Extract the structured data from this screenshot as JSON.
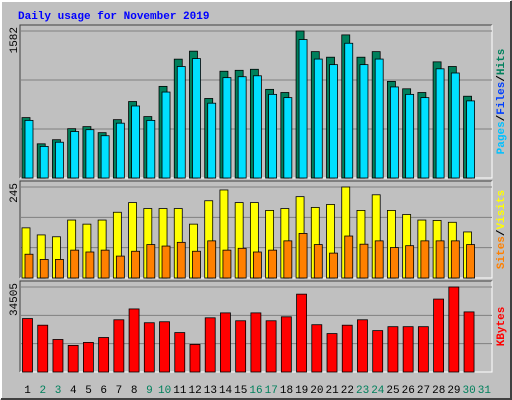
{
  "title": "Daily usage for November 2019",
  "chart_data": [
    {
      "type": "bar",
      "ylim": [
        0,
        1582
      ],
      "yticks": [
        1582
      ],
      "side_label": [
        {
          "text": "Pages",
          "color": "#00c0ff"
        },
        {
          "text": "Files",
          "color": "#0040ff"
        },
        {
          "text": "Hits",
          "color": "#00805c"
        }
      ],
      "separator": "/",
      "series": [
        {
          "name": "Hits",
          "color": "#00805c",
          "values": [
            650,
            368,
            412,
            531,
            553,
            488,
            628,
            823,
            661,
            986,
            1279,
            1365,
            856,
            1149,
            1159,
            1170,
            954,
            920,
            1582,
            1360,
            1300,
            1540,
            1300,
            1360,
            1040,
            960,
            920,
            1250,
            1200,
            880,
            null
          ]
        },
        {
          "name": "Pages",
          "color": "#00e0ff",
          "values": [
            620,
            340,
            385,
            500,
            520,
            455,
            590,
            775,
            620,
            925,
            1200,
            1285,
            805,
            1080,
            1090,
            1100,
            900,
            865,
            1490,
            1280,
            1220,
            1450,
            1220,
            1280,
            980,
            900,
            865,
            1175,
            1130,
            830,
            null
          ]
        }
      ]
    },
    {
      "type": "bar",
      "ylim": [
        0,
        245
      ],
      "yticks": [
        245
      ],
      "side_label": [
        {
          "text": "Sites",
          "color": "#ff8000"
        },
        {
          "text": "Visits",
          "color": "#ffff00"
        }
      ],
      "separator": "/",
      "series": [
        {
          "name": "Visits",
          "color": "#ffff00",
          "values": [
            135,
            116,
            111,
            156,
            145,
            156,
            177,
            203,
            187,
            187,
            187,
            145,
            208,
            237,
            203,
            203,
            182,
            187,
            219,
            190,
            198,
            245,
            182,
            224,
            182,
            171,
            156,
            155,
            150,
            124,
            null
          ]
        },
        {
          "name": "Sites",
          "color": "#ff8000",
          "values": [
            64,
            50,
            50,
            75,
            70,
            75,
            59,
            72,
            90,
            86,
            96,
            72,
            100,
            75,
            80,
            70,
            75,
            100,
            120,
            90,
            67,
            113,
            91,
            100,
            82,
            87,
            100,
            100,
            100,
            90,
            null
          ]
        }
      ]
    },
    {
      "type": "bar",
      "ylim": [
        0,
        34505
      ],
      "yticks": [
        34505
      ],
      "side_label": [
        {
          "text": "KBytes",
          "color": "#ff0000"
        }
      ],
      "categories": [
        "1",
        "2",
        "3",
        "4",
        "5",
        "6",
        "7",
        "8",
        "9",
        "10",
        "11",
        "12",
        "13",
        "14",
        "15",
        "16",
        "17",
        "18",
        "19",
        "20",
        "21",
        "22",
        "23",
        "24",
        "25",
        "26",
        "27",
        "28",
        "29",
        "30",
        "31"
      ],
      "weekend": [
        1,
        2,
        8,
        9,
        15,
        16,
        22,
        23,
        29,
        30
      ],
      "weekend_color": "#00805c",
      "series": [
        {
          "name": "KBytes",
          "color": "#ff0000",
          "values": [
            21700,
            19000,
            13200,
            10800,
            12000,
            14000,
            21200,
            25600,
            20000,
            20400,
            16000,
            11200,
            22000,
            24000,
            20800,
            24000,
            20800,
            22400,
            31600,
            19200,
            15600,
            19000,
            21200,
            16800,
            18400,
            18400,
            18400,
            29600,
            34505,
            24400,
            null
          ]
        }
      ]
    }
  ]
}
